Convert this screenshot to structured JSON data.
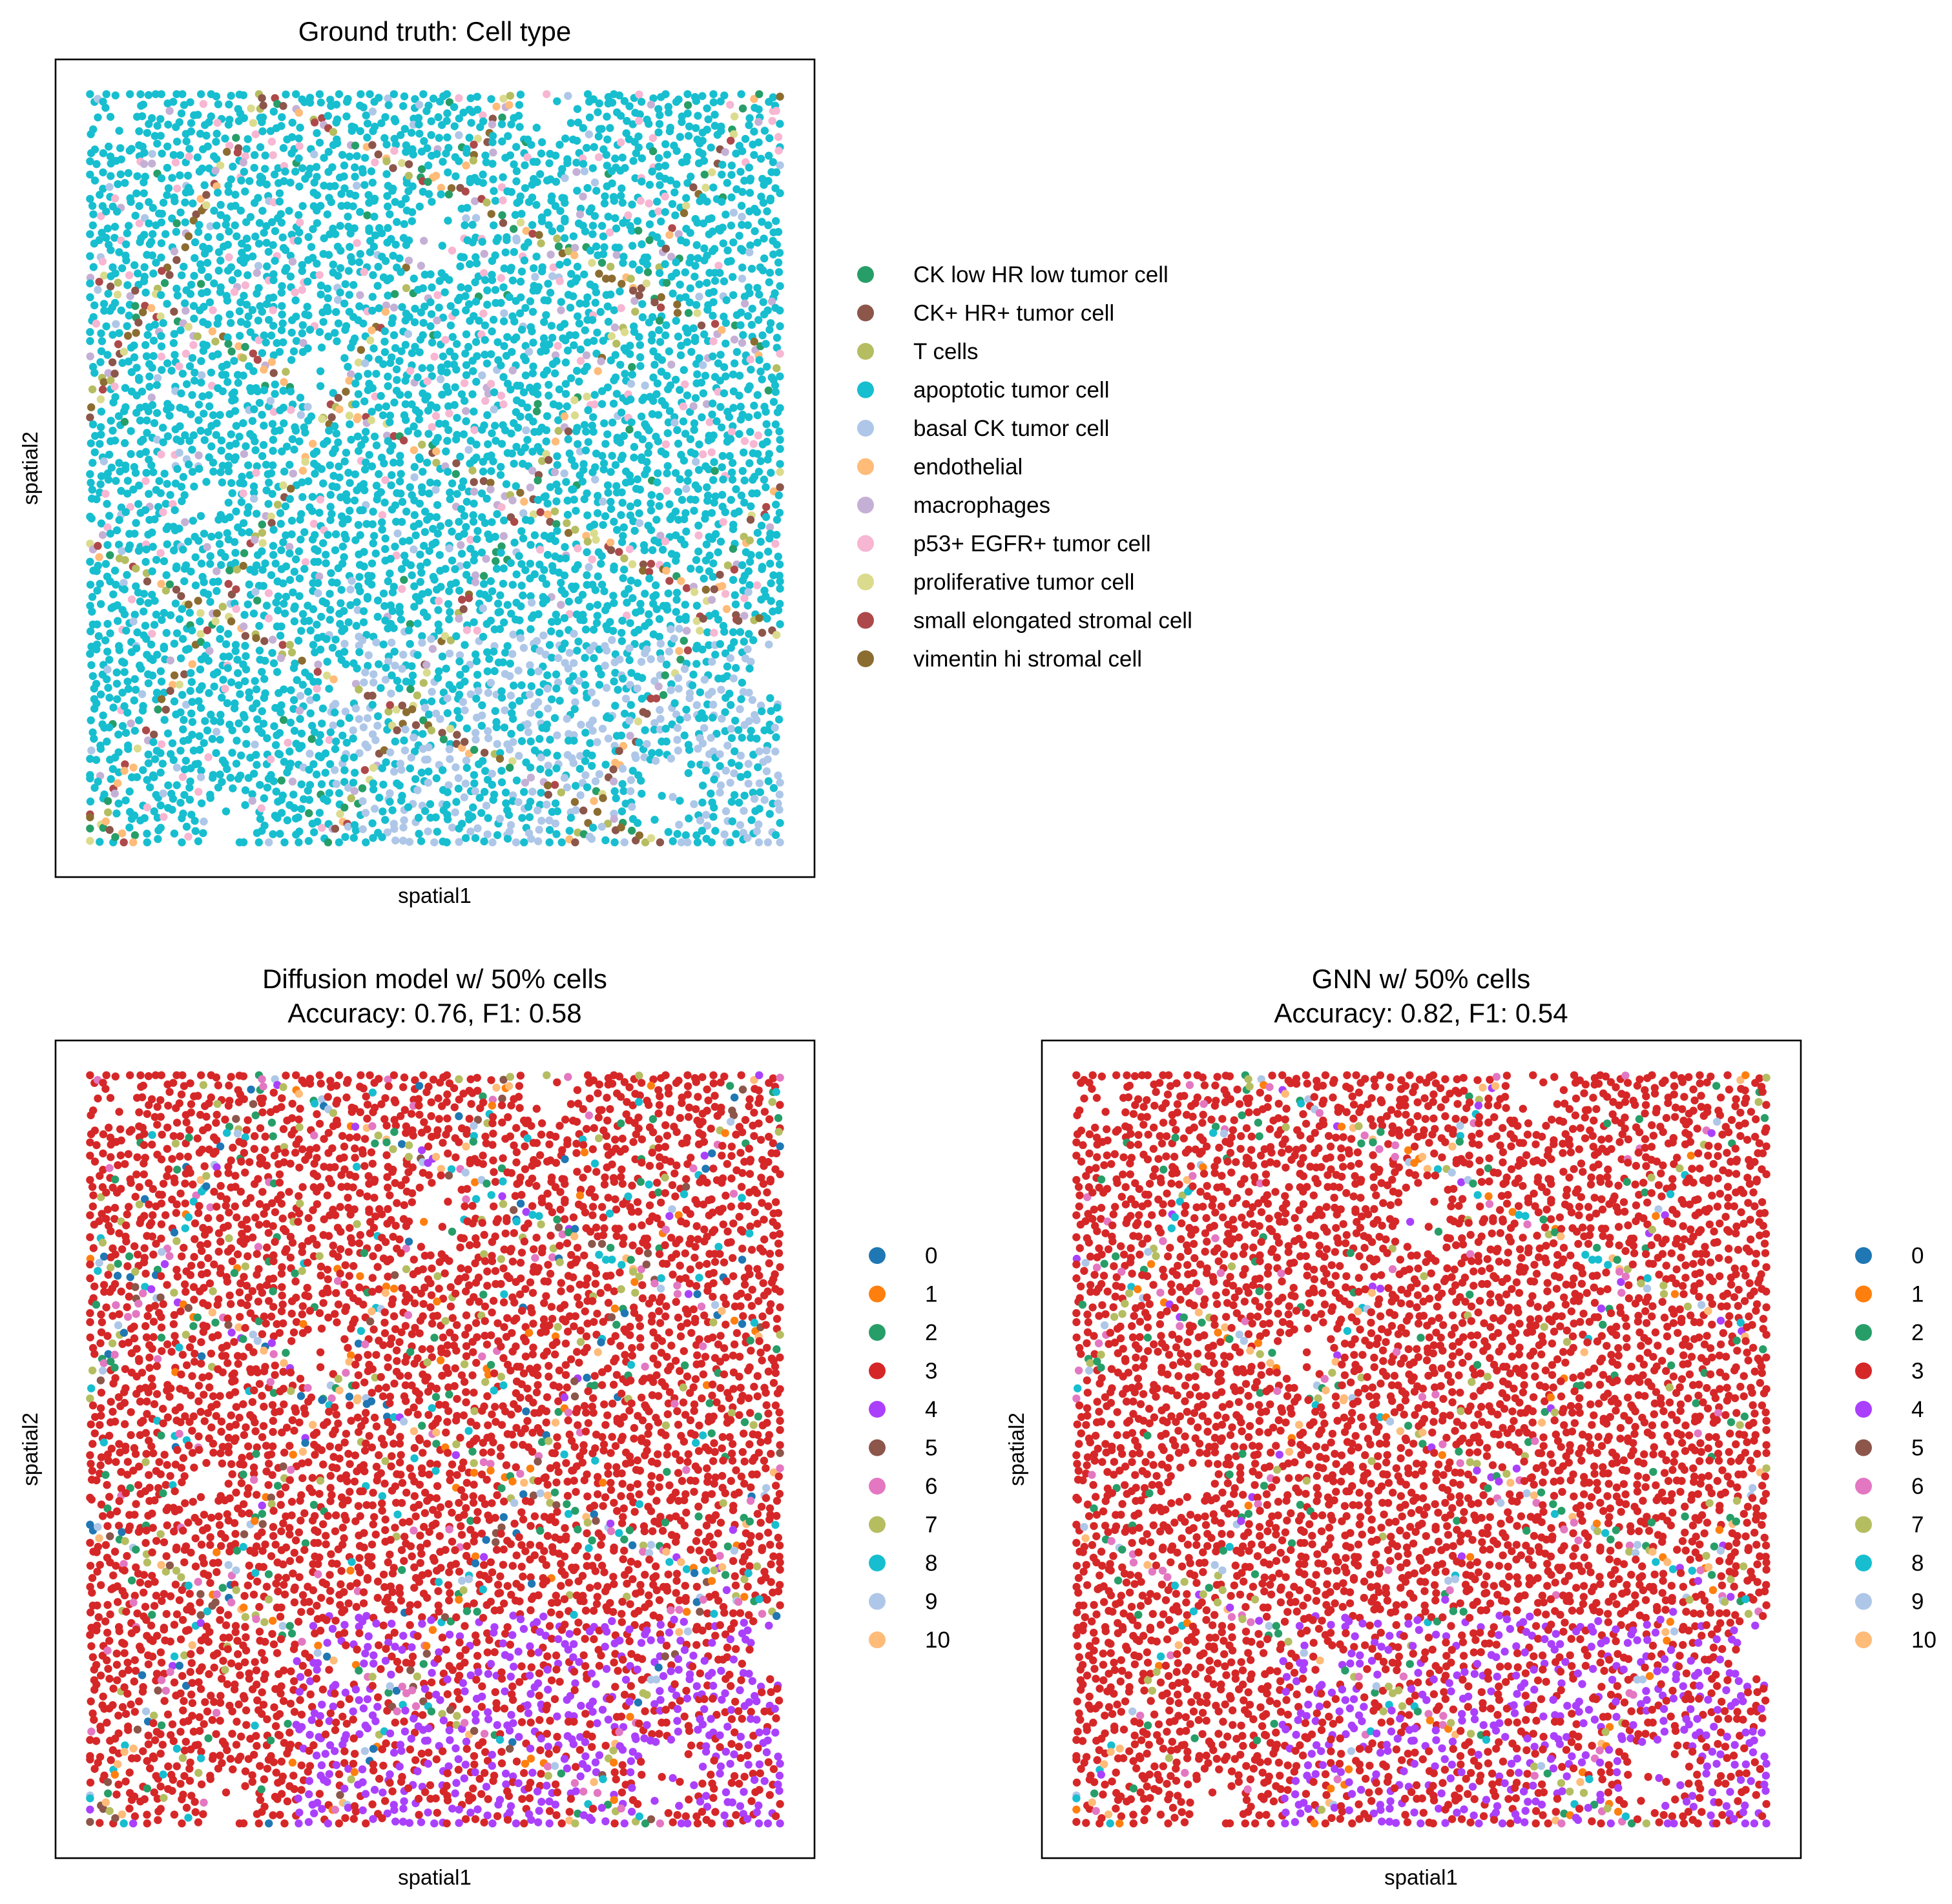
{
  "colors": {
    "ground_truth": {
      "CK low HR low tumor cell": "#279e68",
      "CK+ HR+ tumor cell": "#8c564b",
      "T cells": "#b5bd61",
      "apoptotic tumor cell": "#17becf",
      "basal CK tumor cell": "#aec7e8",
      "endothelial": "#ffbb78",
      "macrophages": "#c5b0d5",
      "p53+ EGFR+ tumor cell": "#f7b6d2",
      "proliferative tumor cell": "#dbdb8d",
      "small elongated stromal cell": "#ad494a",
      "vimentin hi stromal cell": "#8c6d31"
    },
    "clusters": [
      "#1f77b4",
      "#ff7f0e",
      "#279e68",
      "#d62728",
      "#aa40fc",
      "#8c564b",
      "#e377c2",
      "#b5bd61",
      "#17becf",
      "#aec7e8",
      "#ffbb78"
    ]
  },
  "chart_data": [
    {
      "type": "scatter",
      "title": "Ground truth: Cell type",
      "xlabel": "spatial1",
      "ylabel": "spatial2",
      "x_ticks": "none",
      "y_ticks": "none",
      "legend": {
        "placement": "right",
        "entries": [
          "CK low HR low tumor cell",
          "CK+ HR+ tumor cell",
          "T cells",
          "apoptotic tumor cell",
          "basal CK tumor cell",
          "endothelial",
          "macrophages",
          "p53+ EGFR+ tumor cell",
          "proliferative tumor cell",
          "small elongated stromal cell",
          "vimentin hi stromal cell"
        ]
      },
      "point_count_approx": 5300,
      "composition_approx": {
        "apoptotic tumor cell": 0.62,
        "basal CK tumor cell": 0.1,
        "T cells": 0.05,
        "CK+ HR+ tumor cell": 0.04,
        "macrophages": 0.04,
        "p53+ EGFR+ tumor cell": 0.04,
        "proliferative tumor cell": 0.03,
        "CK low HR low tumor cell": 0.03,
        "small elongated stromal cell": 0.02,
        "vimentin hi stromal cell": 0.02,
        "endothelial": 0.01
      }
    },
    {
      "type": "scatter",
      "title": "Diffusion model w/ 50% cells",
      "subtitle": "Accuracy: 0.76, F1: 0.58",
      "xlabel": "spatial1",
      "ylabel": "spatial2",
      "x_ticks": "none",
      "y_ticks": "none",
      "legend": {
        "placement": "right",
        "entries": [
          "0",
          "1",
          "2",
          "3",
          "4",
          "5",
          "6",
          "7",
          "8",
          "9",
          "10"
        ]
      },
      "point_count_approx": 5300,
      "composition_approx": {
        "3": 0.6,
        "4": 0.09,
        "2": 0.06,
        "7": 0.05,
        "6": 0.05,
        "8": 0.04,
        "9": 0.03,
        "1": 0.03,
        "0": 0.02,
        "5": 0.02,
        "10": 0.01
      }
    },
    {
      "type": "scatter",
      "title": "GNN w/ 50% cells",
      "subtitle": "Accuracy: 0.82, F1: 0.54",
      "xlabel": "spatial1",
      "ylabel": "spatial2",
      "x_ticks": "none",
      "y_ticks": "none",
      "legend": {
        "placement": "right",
        "entries": [
          "0",
          "1",
          "2",
          "3",
          "4",
          "5",
          "6",
          "7",
          "8",
          "9",
          "10"
        ]
      },
      "point_count_approx": 5300,
      "composition_approx": {
        "3": 0.72,
        "4": 0.09,
        "2": 0.05,
        "6": 0.04,
        "7": 0.03,
        "8": 0.02,
        "9": 0.02,
        "1": 0.01,
        "0": 0.01,
        "5": 0.005,
        "10": 0.005
      }
    }
  ]
}
